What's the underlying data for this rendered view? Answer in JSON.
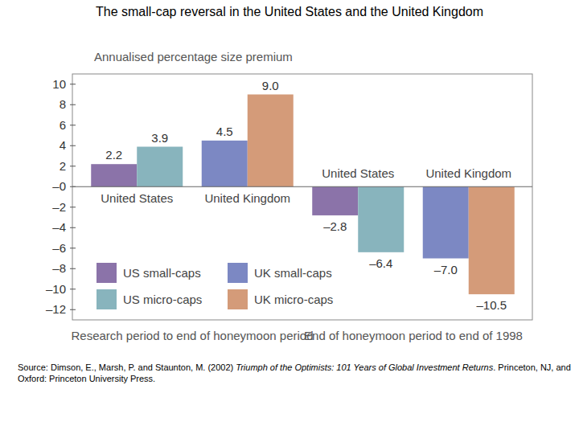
{
  "chart_data": {
    "type": "bar",
    "title": "The small-cap reversal in the United States and the United Kingdom",
    "y_label": "Annualised percentage size premium",
    "categories": [
      "United States",
      "United Kingdom",
      "United States",
      "United Kingdom"
    ],
    "period_labels": [
      "Research period to end of honeymoon period",
      "End of honeymoon period to end of 1998"
    ],
    "series": [
      {
        "name": "US small-caps",
        "color": "#8b73a9",
        "values": [
          2.2,
          null,
          -2.8,
          null
        ],
        "value_labels": [
          "2.2",
          null,
          "–2.8",
          null
        ]
      },
      {
        "name": "US micro-caps",
        "color": "#88b4bd",
        "values": [
          3.9,
          null,
          -6.4,
          null
        ],
        "value_labels": [
          "3.9",
          null,
          "–6.4",
          null
        ]
      },
      {
        "name": "UK small-caps",
        "color": "#7c88c3",
        "values": [
          null,
          4.5,
          null,
          -7.0
        ],
        "value_labels": [
          null,
          "4.5",
          null,
          "–7.0"
        ]
      },
      {
        "name": "UK micro-caps",
        "color": "#d49b79",
        "values": [
          null,
          9.0,
          null,
          -10.5
        ],
        "value_labels": [
          null,
          "9.0",
          null,
          "–10.5"
        ]
      }
    ],
    "ylim": [
      -13,
      11
    ],
    "yticks": [
      {
        "value": -12,
        "label": "–12"
      },
      {
        "value": -10,
        "label": "–10"
      },
      {
        "value": -8,
        "label": "–8"
      },
      {
        "value": -6,
        "label": "–6"
      },
      {
        "value": -4,
        "label": "–4"
      },
      {
        "value": -2,
        "label": "–2"
      },
      {
        "value": 0,
        "label": "–0"
      },
      2,
      4,
      6,
      8,
      10
    ],
    "grid": false,
    "legend": "lower left",
    "data_labels": true,
    "source": [
      "Source: Dimson, E., Marsh, P. and Staunton, M. (2002) ",
      "Triumph of the Optimists: 101 Years of Global Investment Returns",
      ". Princeton, NJ, and Oxford: Princeton University Press."
    ]
  }
}
